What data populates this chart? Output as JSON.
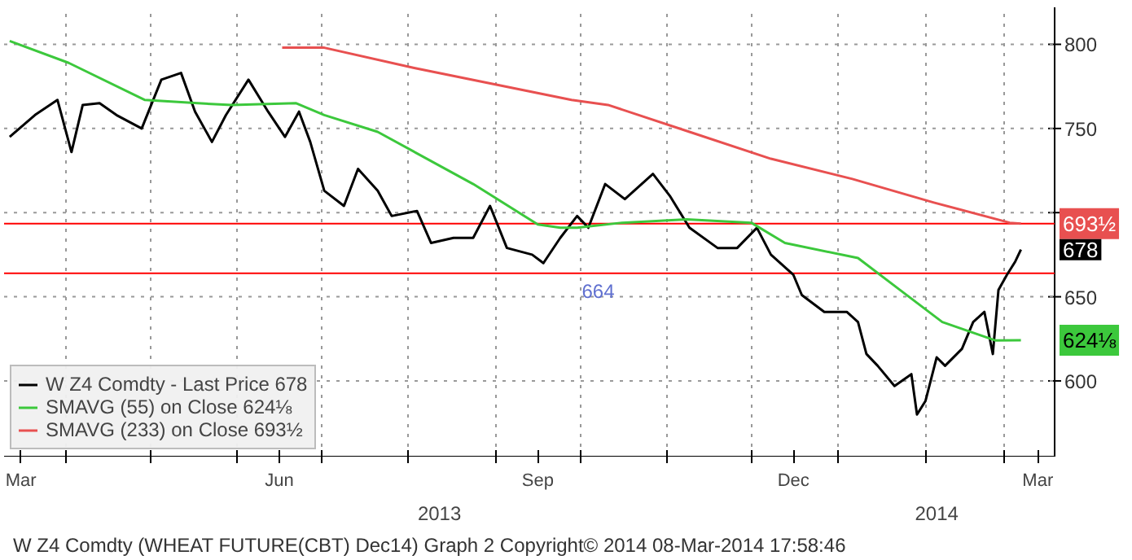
{
  "chart_data": {
    "type": "line",
    "xlim": [
      "2013-03-10",
      "2014-03-19"
    ],
    "ylim": [
      555,
      822
    ],
    "xticks": [
      {
        "value": "2013-03-16",
        "label": "Mar"
      },
      {
        "value": "2013-04-01",
        "label": null
      },
      {
        "value": "2013-05-01",
        "label": null
      },
      {
        "value": "2013-06-01",
        "label": null
      },
      {
        "value": "2013-06-16",
        "label": "Jun"
      },
      {
        "value": "2013-07-01",
        "label": null
      },
      {
        "value": "2013-08-01",
        "label": null
      },
      {
        "value": "2013-09-01",
        "label": null
      },
      {
        "value": "2013-09-16",
        "label": "Sep"
      },
      {
        "value": "2013-10-01",
        "label": null
      },
      {
        "value": "2013-11-01",
        "label": null
      },
      {
        "value": "2013-12-01",
        "label": null
      },
      {
        "value": "2013-12-16",
        "label": "Dec"
      },
      {
        "value": "2014-01-01",
        "label": null
      },
      {
        "value": "2014-02-01",
        "label": null
      },
      {
        "value": "2014-03-01",
        "label": null
      },
      {
        "value": "2014-03-13",
        "label": "Mar"
      }
    ],
    "x2lim": [
      "2013-03-10",
      "2014-03-19"
    ],
    "x2ticks": [
      {
        "value": "2013-08-12",
        "label": "2013"
      },
      {
        "value": "2014-02-05",
        "label": "2014"
      }
    ],
    "yticks": [
      600,
      650,
      {
        "value": 700,
        "label": null
      },
      750,
      800
    ],
    "grid": true,
    "legend": "bottom left",
    "line_style": "solid",
    "series": [
      {
        "name": "W Z4 Comdty - Last Price 678",
        "color": "#000000",
        "x": [
          "2013-03-12",
          "2013-03-21",
          "2013-03-29",
          "2013-04-03",
          "2013-04-07",
          "2013-04-13",
          "2013-04-19",
          "2013-04-28",
          "2013-05-05",
          "2013-05-12",
          "2013-05-17",
          "2013-05-23",
          "2013-05-28",
          "2013-06-05",
          "2013-06-12",
          "2013-06-18",
          "2013-06-23",
          "2013-06-27",
          "2013-07-02",
          "2013-07-09",
          "2013-07-14",
          "2013-07-21",
          "2013-07-26",
          "2013-08-04",
          "2013-08-09",
          "2013-08-17",
          "2013-08-24",
          "2013-08-30",
          "2013-09-05",
          "2013-09-14",
          "2013-09-18",
          "2013-09-24",
          "2013-09-30",
          "2013-10-04",
          "2013-10-10",
          "2013-10-17",
          "2013-10-27",
          "2013-11-02",
          "2013-11-09",
          "2013-11-19",
          "2013-11-26",
          "2013-12-03",
          "2013-12-08",
          "2013-12-16",
          "2013-12-19",
          "2013-12-27",
          "2014-01-04",
          "2014-01-08",
          "2014-01-11",
          "2014-01-15",
          "2014-01-21",
          "2014-01-27",
          "2014-01-29",
          "2014-02-01",
          "2014-02-05",
          "2014-02-08",
          "2014-02-14",
          "2014-02-18",
          "2014-02-22",
          "2014-02-25",
          "2014-02-27",
          "2014-03-02",
          "2014-03-05",
          "2014-03-07"
        ],
        "values": [
          745,
          758,
          767,
          736,
          764,
          765,
          758,
          750,
          779,
          783,
          760,
          742,
          758,
          779,
          760,
          745,
          760,
          742,
          713,
          704,
          726,
          713,
          698,
          701,
          682,
          685,
          685,
          704,
          679,
          675,
          670,
          685,
          698,
          691,
          717,
          708,
          723,
          710,
          691,
          679,
          679,
          691,
          675,
          663,
          651,
          641,
          641,
          635,
          616,
          609,
          597,
          604,
          580,
          588,
          614,
          609,
          619,
          635,
          641,
          616,
          654,
          663,
          671,
          678
        ]
      },
      {
        "name": "SMAVG (55) on Close 624⅛",
        "color": "#3cc83c",
        "x": [
          "2013-03-12",
          "2013-04-02",
          "2013-04-29",
          "2013-05-18",
          "2013-05-30",
          "2013-06-22",
          "2013-07-02",
          "2013-07-21",
          "2013-08-24",
          "2013-09-16",
          "2013-09-24",
          "2013-09-30",
          "2013-10-16",
          "2013-11-08",
          "2013-12-01",
          "2013-12-13",
          "2014-01-08",
          "2014-01-23",
          "2014-02-07",
          "2014-02-26",
          "2014-03-07"
        ],
        "values": [
          802,
          789,
          767,
          765,
          764,
          765,
          758,
          748,
          717,
          693,
          691,
          691,
          694,
          696,
          694,
          682,
          673,
          654,
          635,
          624,
          624.125
        ]
      },
      {
        "name": "SMAVG (233) on Close 693½",
        "color": "#e85050",
        "x": [
          "2013-06-17",
          "2013-07-02",
          "2013-08-03",
          "2013-09-28",
          "2013-10-11",
          "2013-11-09",
          "2013-12-08",
          "2014-01-06",
          "2014-02-04",
          "2014-03-03",
          "2014-03-07"
        ],
        "values": [
          798,
          798,
          786,
          767,
          764,
          748,
          732,
          720,
          706,
          694,
          693.5
        ]
      }
    ],
    "ref_lines": [
      {
        "axis": "y",
        "value": 693.5,
        "color": "#ff0000"
      },
      {
        "axis": "y",
        "value": 664,
        "label": "664",
        "color": "#ff0000"
      }
    ],
    "annotations": [
      {
        "text": "693½",
        "x": "2014-03-07",
        "y": 693.5
      },
      {
        "text": "678",
        "x": "2014-03-07",
        "y": 678
      },
      {
        "text": "624⅛",
        "x": "2014-03-07",
        "y": 624.125
      },
      "W Z4 Comdty (WHEAT FUTURE(CBT) Dec14) Graph 2 Copyright© 2014 08-Mar-2014 17:58:46"
    ]
  }
}
